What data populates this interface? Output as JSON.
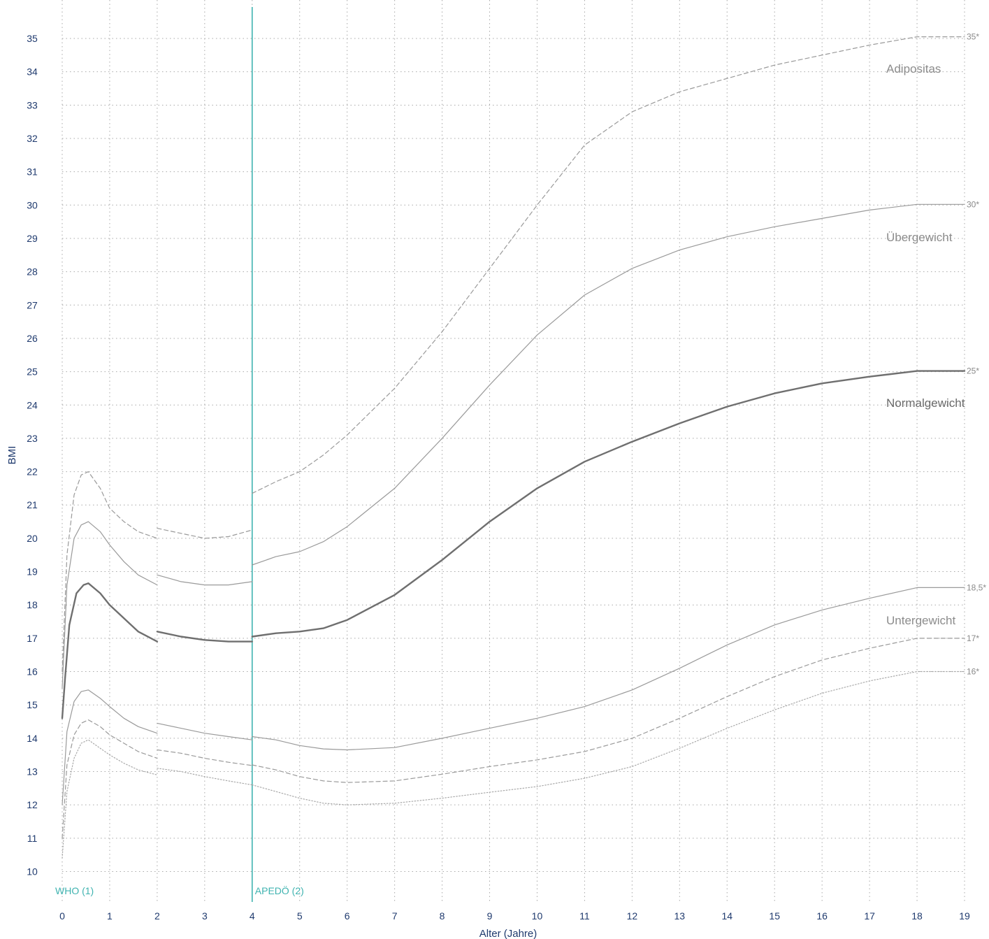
{
  "chart_data": {
    "type": "line",
    "xlabel": "Alter (Jahre)",
    "ylabel": "BMI",
    "xlim": [
      0,
      19
    ],
    "ylim": [
      10,
      35
    ],
    "x_ticks": [
      0,
      1,
      2,
      3,
      4,
      5,
      6,
      7,
      8,
      9,
      10,
      11,
      12,
      13,
      14,
      15,
      16,
      17,
      18,
      19
    ],
    "y_ticks": [
      10,
      11,
      12,
      13,
      14,
      15,
      16,
      17,
      18,
      19,
      20,
      21,
      22,
      23,
      24,
      25,
      26,
      27,
      28,
      29,
      30,
      31,
      32,
      33,
      34,
      35
    ],
    "grid": true,
    "sources": [
      {
        "label": "WHO (1)",
        "x": 0
      },
      {
        "label": "APEDÖ (2)",
        "x": 4
      }
    ],
    "zones": [
      {
        "label": "Adipositas",
        "color": "#8c8c8c"
      },
      {
        "label": "Übergewicht",
        "color": "#8c8c8c"
      },
      {
        "label": "Normalgewicht",
        "color": "#6a6a6a"
      },
      {
        "label": "Untergewicht",
        "color": "#8c8c8c"
      }
    ],
    "series": [
      {
        "end_label": "35*",
        "style": "dashed",
        "color": "#9a9a9a",
        "width": 1.2,
        "segments": [
          [
            [
              0,
              16
            ],
            [
              0.1,
              19.5
            ],
            [
              0.25,
              21.3
            ],
            [
              0.4,
              21.9
            ],
            [
              0.55,
              22.0
            ],
            [
              0.8,
              21.5
            ],
            [
              1,
              20.9
            ],
            [
              1.3,
              20.5
            ],
            [
              1.6,
              20.2
            ],
            [
              2,
              20.0
            ]
          ],
          [
            [
              2,
              20.3
            ],
            [
              2.5,
              20.15
            ],
            [
              3,
              20.0
            ],
            [
              3.5,
              20.05
            ],
            [
              4,
              20.25
            ]
          ],
          [
            [
              4,
              21.35
            ],
            [
              4.5,
              21.7
            ],
            [
              5,
              22.0
            ],
            [
              5.5,
              22.5
            ],
            [
              6,
              23.1
            ],
            [
              7,
              24.5
            ],
            [
              8,
              26.2
            ],
            [
              9,
              28.1
            ],
            [
              10,
              30.0
            ],
            [
              11,
              31.8
            ],
            [
              12,
              32.8
            ],
            [
              13,
              33.4
            ],
            [
              14,
              33.8
            ],
            [
              15,
              34.2
            ],
            [
              16,
              34.5
            ],
            [
              17,
              34.8
            ],
            [
              18,
              35.05
            ],
            [
              19,
              35.05
            ]
          ]
        ]
      },
      {
        "end_label": "30*",
        "style": "solid",
        "color": "#9a9a9a",
        "width": 1.2,
        "segments": [
          [
            [
              0,
              15.5
            ],
            [
              0.1,
              18.6
            ],
            [
              0.25,
              20.0
            ],
            [
              0.4,
              20.4
            ],
            [
              0.55,
              20.5
            ],
            [
              0.8,
              20.2
            ],
            [
              1,
              19.8
            ],
            [
              1.3,
              19.3
            ],
            [
              1.6,
              18.9
            ],
            [
              2,
              18.6
            ]
          ],
          [
            [
              2,
              18.9
            ],
            [
              2.5,
              18.7
            ],
            [
              3,
              18.6
            ],
            [
              3.5,
              18.6
            ],
            [
              4,
              18.7
            ]
          ],
          [
            [
              4,
              19.2
            ],
            [
              4.5,
              19.45
            ],
            [
              5,
              19.6
            ],
            [
              5.5,
              19.9
            ],
            [
              6,
              20.35
            ],
            [
              7,
              21.5
            ],
            [
              8,
              23.0
            ],
            [
              9,
              24.6
            ],
            [
              10,
              26.1
            ],
            [
              11,
              27.3
            ],
            [
              12,
              28.1
            ],
            [
              13,
              28.65
            ],
            [
              14,
              29.05
            ],
            [
              15,
              29.35
            ],
            [
              16,
              29.6
            ],
            [
              17,
              29.85
            ],
            [
              18,
              30.02
            ],
            [
              19,
              30.02
            ]
          ]
        ]
      },
      {
        "end_label": "25*",
        "style": "solid",
        "color": "#6f6f6f",
        "width": 2.4,
        "segments": [
          [
            [
              0,
              14.6
            ],
            [
              0.06,
              15.8
            ],
            [
              0.15,
              17.4
            ],
            [
              0.3,
              18.35
            ],
            [
              0.45,
              18.6
            ],
            [
              0.55,
              18.65
            ],
            [
              0.8,
              18.35
            ],
            [
              1,
              18.0
            ],
            [
              1.3,
              17.6
            ],
            [
              1.6,
              17.2
            ],
            [
              2,
              16.9
            ]
          ],
          [
            [
              2,
              17.2
            ],
            [
              2.5,
              17.05
            ],
            [
              3,
              16.95
            ],
            [
              3.5,
              16.9
            ],
            [
              4,
              16.9
            ]
          ],
          [
            [
              4,
              17.05
            ],
            [
              4.5,
              17.15
            ],
            [
              5,
              17.2
            ],
            [
              5.5,
              17.3
            ],
            [
              6,
              17.55
            ],
            [
              7,
              18.3
            ],
            [
              8,
              19.35
            ],
            [
              9,
              20.5
            ],
            [
              10,
              21.5
            ],
            [
              11,
              22.3
            ],
            [
              12,
              22.9
            ],
            [
              13,
              23.45
            ],
            [
              14,
              23.95
            ],
            [
              15,
              24.35
            ],
            [
              16,
              24.65
            ],
            [
              17,
              24.85
            ],
            [
              18,
              25.02
            ],
            [
              19,
              25.02
            ]
          ]
        ]
      },
      {
        "end_label": "18,5*",
        "style": "solid",
        "color": "#9a9a9a",
        "width": 1.2,
        "segments": [
          [
            [
              0,
              12.0
            ],
            [
              0.1,
              14.2
            ],
            [
              0.25,
              15.1
            ],
            [
              0.4,
              15.4
            ],
            [
              0.55,
              15.45
            ],
            [
              0.8,
              15.2
            ],
            [
              1,
              14.95
            ],
            [
              1.3,
              14.6
            ],
            [
              1.6,
              14.35
            ],
            [
              2,
              14.15
            ]
          ],
          [
            [
              2,
              14.45
            ],
            [
              2.5,
              14.3
            ],
            [
              3,
              14.15
            ],
            [
              3.5,
              14.05
            ],
            [
              4,
              13.95
            ]
          ],
          [
            [
              4,
              14.05
            ],
            [
              4.5,
              13.95
            ],
            [
              5,
              13.78
            ],
            [
              5.5,
              13.68
            ],
            [
              6,
              13.65
            ],
            [
              7,
              13.72
            ],
            [
              8,
              14.0
            ],
            [
              9,
              14.3
            ],
            [
              10,
              14.6
            ],
            [
              11,
              14.95
            ],
            [
              12,
              15.45
            ],
            [
              13,
              16.1
            ],
            [
              14,
              16.8
            ],
            [
              15,
              17.4
            ],
            [
              16,
              17.85
            ],
            [
              17,
              18.2
            ],
            [
              18,
              18.52
            ],
            [
              19,
              18.52
            ]
          ]
        ]
      },
      {
        "end_label": "17*",
        "style": "dashed",
        "color": "#9a9a9a",
        "width": 1.2,
        "segments": [
          [
            [
              0,
              11.0
            ],
            [
              0.1,
              13.2
            ],
            [
              0.25,
              14.1
            ],
            [
              0.4,
              14.45
            ],
            [
              0.55,
              14.55
            ],
            [
              0.8,
              14.35
            ],
            [
              1,
              14.1
            ],
            [
              1.3,
              13.85
            ],
            [
              1.6,
              13.6
            ],
            [
              2,
              13.4
            ]
          ],
          [
            [
              2,
              13.65
            ],
            [
              2.5,
              13.55
            ],
            [
              3,
              13.4
            ],
            [
              3.5,
              13.28
            ],
            [
              4,
              13.18
            ]
          ],
          [
            [
              4,
              13.2
            ],
            [
              4.5,
              13.05
            ],
            [
              5,
              12.85
            ],
            [
              5.5,
              12.72
            ],
            [
              6,
              12.67
            ],
            [
              7,
              12.72
            ],
            [
              8,
              12.92
            ],
            [
              9,
              13.15
            ],
            [
              10,
              13.35
            ],
            [
              11,
              13.6
            ],
            [
              12,
              14.0
            ],
            [
              13,
              14.6
            ],
            [
              14,
              15.25
            ],
            [
              15,
              15.85
            ],
            [
              16,
              16.35
            ],
            [
              17,
              16.7
            ],
            [
              18,
              17.0
            ],
            [
              19,
              17.0
            ]
          ]
        ]
      },
      {
        "end_label": "16*",
        "style": "dotted",
        "color": "#a8a8a8",
        "width": 1.2,
        "segments": [
          [
            [
              0,
              10.4
            ],
            [
              0.1,
              12.4
            ],
            [
              0.25,
              13.4
            ],
            [
              0.4,
              13.85
            ],
            [
              0.55,
              13.95
            ],
            [
              0.8,
              13.7
            ],
            [
              1,
              13.5
            ],
            [
              1.3,
              13.25
            ],
            [
              1.6,
              13.05
            ],
            [
              2,
              12.9
            ]
          ],
          [
            [
              2,
              13.1
            ],
            [
              2.5,
              13.0
            ],
            [
              3,
              12.85
            ],
            [
              3.5,
              12.72
            ],
            [
              4,
              12.6
            ]
          ],
          [
            [
              4,
              12.6
            ],
            [
              4.5,
              12.4
            ],
            [
              5,
              12.2
            ],
            [
              5.5,
              12.05
            ],
            [
              6,
              12.0
            ],
            [
              7,
              12.05
            ],
            [
              8,
              12.2
            ],
            [
              9,
              12.38
            ],
            [
              10,
              12.55
            ],
            [
              11,
              12.8
            ],
            [
              12,
              13.15
            ],
            [
              13,
              13.7
            ],
            [
              14,
              14.3
            ],
            [
              15,
              14.85
            ],
            [
              16,
              15.35
            ],
            [
              17,
              15.72
            ],
            [
              18,
              16.0
            ],
            [
              19,
              16.0
            ]
          ]
        ]
      }
    ]
  }
}
